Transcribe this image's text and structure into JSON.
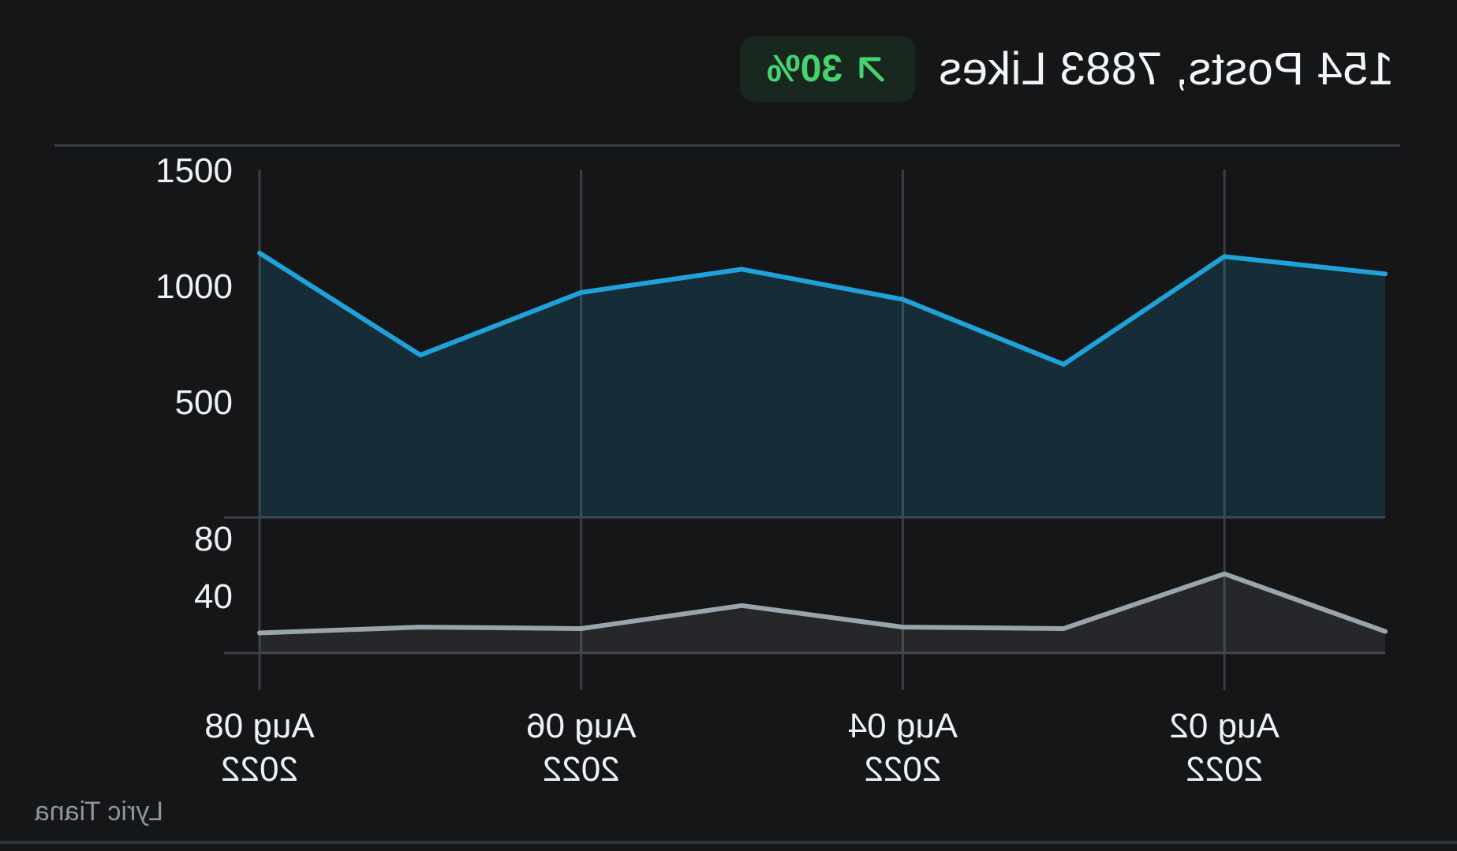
{
  "header": {
    "title": "154 Posts, 7883 Likes",
    "badge_label": "30%",
    "badge_icon": "arrow-up-right-icon",
    "badge_color": "#46d36f"
  },
  "watermark": "Lyric Tiana",
  "chart_data": [
    {
      "type": "area",
      "x": [
        "Aug 01 2022",
        "Aug 02 2022",
        "Aug 03 2022",
        "Aug 04 2022",
        "Aug 05 2022",
        "Aug 06 2022",
        "Aug 07 2022",
        "Aug 08 2022"
      ],
      "x_tick_labels": [
        {
          "date": "Aug 02 2022",
          "line1": "Aug 02",
          "line2": "2022"
        },
        {
          "date": "Aug 04 2022",
          "line1": "Aug 04",
          "line2": "2022"
        },
        {
          "date": "Aug 06 2022",
          "line1": "Aug 06",
          "line2": "2022"
        },
        {
          "date": "Aug 08 2022",
          "line1": "Aug 08",
          "line2": "2022"
        }
      ],
      "series": [
        {
          "values": [
            1050,
            1125,
            660,
            940,
            1070,
            970,
            700,
            1140
          ],
          "color": "#1fa2d9"
        }
      ],
      "ylim": [
        0,
        1500
      ],
      "y_ticks": [
        500,
        1000,
        1500
      ],
      "y_tick_labels": [
        "500",
        "1000",
        "1500"
      ],
      "grid": true,
      "x_reversed": true
    },
    {
      "type": "area",
      "x": [
        "Aug 01 2022",
        "Aug 02 2022",
        "Aug 03 2022",
        "Aug 04 2022",
        "Aug 05 2022",
        "Aug 06 2022",
        "Aug 07 2022",
        "Aug 08 2022"
      ],
      "series": [
        {
          "values": [
            15,
            55,
            17,
            18,
            33,
            17,
            18,
            14
          ],
          "color": "#9aa4ad"
        }
      ],
      "ylim": [
        0,
        80
      ],
      "y_ticks": [
        40,
        80
      ],
      "y_tick_labels": [
        "40",
        "80"
      ],
      "grid": true,
      "x_reversed": true
    }
  ]
}
